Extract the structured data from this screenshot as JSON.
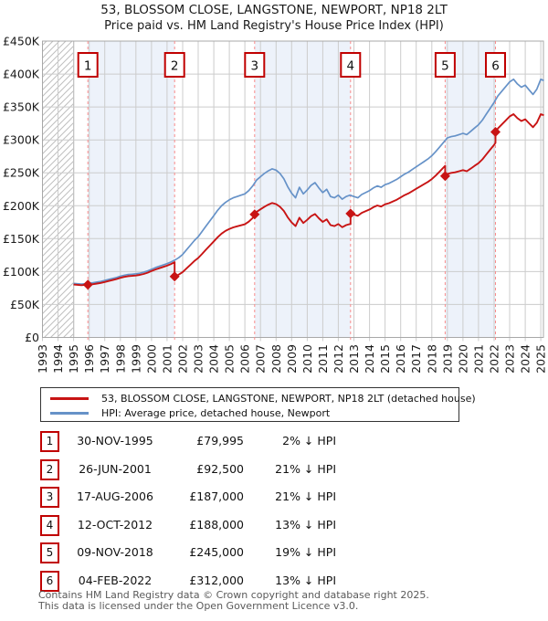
{
  "title": "53, BLOSSOM CLOSE, LANGSTONE, NEWPORT, NP18 2LT",
  "subtitle": "Price paid vs. HM Land Registry's House Price Index (HPI)",
  "legend": {
    "property": {
      "label": "53, BLOSSOM CLOSE, LANGSTONE, NEWPORT, NP18 2LT (detached house)",
      "color": "#c81414"
    },
    "hpi": {
      "label": "HPI: Average price, detached house, Newport",
      "color": "#6692c8"
    }
  },
  "footer": {
    "line1": "Contains HM Land Registry data © Crown copyright and database right 2025.",
    "line2": "This data is licensed under the Open Government Licence v3.0."
  },
  "chart_data": {
    "type": "line",
    "title": "53, BLOSSOM CLOSE, LANGSTONE, NEWPORT, NP18 2LT",
    "subtitle": "Price paid vs. HM Land Registry's House Price Index (HPI)",
    "x_axis": {
      "min": 1993,
      "max": 2025.3,
      "ticks": [
        1993,
        1994,
        1995,
        1996,
        1997,
        1998,
        1999,
        2000,
        2001,
        2002,
        2003,
        2004,
        2005,
        2006,
        2007,
        2008,
        2009,
        2010,
        2011,
        2012,
        2013,
        2014,
        2015,
        2016,
        2017,
        2018,
        2019,
        2020,
        2021,
        2022,
        2023,
        2024,
        2025
      ]
    },
    "y_axis": {
      "min": 0,
      "max": 450000,
      "tick_step": 50000,
      "tick_labels": [
        "£0",
        "£50K",
        "£100K",
        "£150K",
        "£200K",
        "£250K",
        "£300K",
        "£350K",
        "£400K",
        "£450K"
      ]
    },
    "hpi_series": {
      "name": "HPI: Average price, detached house, Newport",
      "color": "#6692c8",
      "points": [
        [
          1995.0,
          82000
        ],
        [
          1995.25,
          81500
        ],
        [
          1995.5,
          81000
        ],
        [
          1995.75,
          81500
        ],
        [
          1996.0,
          82500
        ],
        [
          1996.25,
          83000
        ],
        [
          1996.5,
          84000
        ],
        [
          1996.75,
          85000
        ],
        [
          1997.0,
          86500
        ],
        [
          1997.25,
          88000
        ],
        [
          1997.5,
          89500
        ],
        [
          1997.75,
          91000
        ],
        [
          1998.0,
          93000
        ],
        [
          1998.25,
          94500
        ],
        [
          1998.5,
          95500
        ],
        [
          1998.75,
          96000
        ],
        [
          1999.0,
          96500
        ],
        [
          1999.25,
          97500
        ],
        [
          1999.5,
          99000
        ],
        [
          1999.75,
          101000
        ],
        [
          2000.0,
          103500
        ],
        [
          2000.25,
          106000
        ],
        [
          2000.5,
          108000
        ],
        [
          2000.75,
          110000
        ],
        [
          2001.0,
          112000
        ],
        [
          2001.25,
          114500
        ],
        [
          2001.5,
          117500
        ],
        [
          2001.75,
          121000
        ],
        [
          2002.0,
          126000
        ],
        [
          2002.25,
          133000
        ],
        [
          2002.5,
          140000
        ],
        [
          2002.75,
          147000
        ],
        [
          2003.0,
          153000
        ],
        [
          2003.25,
          161000
        ],
        [
          2003.5,
          169000
        ],
        [
          2003.75,
          177000
        ],
        [
          2004.0,
          185000
        ],
        [
          2004.25,
          193000
        ],
        [
          2004.5,
          200000
        ],
        [
          2004.75,
          205000
        ],
        [
          2005.0,
          209000
        ],
        [
          2005.25,
          212000
        ],
        [
          2005.5,
          214000
        ],
        [
          2005.75,
          216000
        ],
        [
          2006.0,
          218000
        ],
        [
          2006.25,
          223000
        ],
        [
          2006.5,
          230000
        ],
        [
          2006.75,
          239000
        ],
        [
          2007.0,
          244000
        ],
        [
          2007.25,
          249000
        ],
        [
          2007.5,
          253000
        ],
        [
          2007.75,
          256000
        ],
        [
          2008.0,
          254000
        ],
        [
          2008.25,
          249000
        ],
        [
          2008.5,
          241000
        ],
        [
          2008.75,
          229000
        ],
        [
          2009.0,
          219000
        ],
        [
          2009.25,
          212000
        ],
        [
          2009.5,
          228000
        ],
        [
          2009.75,
          218000
        ],
        [
          2010.0,
          224000
        ],
        [
          2010.25,
          231000
        ],
        [
          2010.5,
          235000
        ],
        [
          2010.75,
          227000
        ],
        [
          2011.0,
          220000
        ],
        [
          2011.25,
          225000
        ],
        [
          2011.5,
          214000
        ],
        [
          2011.75,
          212000
        ],
        [
          2012.0,
          216000
        ],
        [
          2012.25,
          210000
        ],
        [
          2012.5,
          214000
        ],
        [
          2012.75,
          216000
        ],
        [
          2013.0,
          214000
        ],
        [
          2013.25,
          212000
        ],
        [
          2013.5,
          217000
        ],
        [
          2013.75,
          220000
        ],
        [
          2014.0,
          223000
        ],
        [
          2014.25,
          227000
        ],
        [
          2014.5,
          230000
        ],
        [
          2014.75,
          228000
        ],
        [
          2015.0,
          232000
        ],
        [
          2015.25,
          234000
        ],
        [
          2015.5,
          237000
        ],
        [
          2015.75,
          240000
        ],
        [
          2016.0,
          244000
        ],
        [
          2016.25,
          248000
        ],
        [
          2016.5,
          251000
        ],
        [
          2016.75,
          255000
        ],
        [
          2017.0,
          259000
        ],
        [
          2017.25,
          263000
        ],
        [
          2017.5,
          267000
        ],
        [
          2017.75,
          271000
        ],
        [
          2018.0,
          276000
        ],
        [
          2018.25,
          282000
        ],
        [
          2018.5,
          289000
        ],
        [
          2018.75,
          296000
        ],
        [
          2019.0,
          303000
        ],
        [
          2019.25,
          305000
        ],
        [
          2019.5,
          306000
        ],
        [
          2019.75,
          308000
        ],
        [
          2020.0,
          310000
        ],
        [
          2020.25,
          308000
        ],
        [
          2020.5,
          313000
        ],
        [
          2020.75,
          318000
        ],
        [
          2021.0,
          323000
        ],
        [
          2021.25,
          330000
        ],
        [
          2021.5,
          339000
        ],
        [
          2021.75,
          348000
        ],
        [
          2022.0,
          357000
        ],
        [
          2022.25,
          367000
        ],
        [
          2022.5,
          374000
        ],
        [
          2022.75,
          381000
        ],
        [
          2023.0,
          388000
        ],
        [
          2023.25,
          392000
        ],
        [
          2023.5,
          385000
        ],
        [
          2023.75,
          380000
        ],
        [
          2024.0,
          383000
        ],
        [
          2024.25,
          376000
        ],
        [
          2024.5,
          369000
        ],
        [
          2024.75,
          377000
        ],
        [
          2025.0,
          392000
        ],
        [
          2025.2,
          390000
        ]
      ]
    },
    "property_series": {
      "name": "53, BLOSSOM CLOSE, LANGSTONE, NEWPORT, NP18 2LT (detached house)",
      "color": "#c81414",
      "note": "price paid; between sales the line tracks the HPI scaled to the last sale price",
      "pre_sale_factor": 0.98
    },
    "sales": [
      {
        "num": 1,
        "date": "30-NOV-1995",
        "year": 1995.915,
        "price": 79995,
        "price_label": "£79,995",
        "hpi_diff": "2% ↓ HPI"
      },
      {
        "num": 2,
        "date": "26-JUN-2001",
        "year": 2001.485,
        "price": 92500,
        "price_label": "£92,500",
        "hpi_diff": "21% ↓ HPI"
      },
      {
        "num": 3,
        "date": "17-AUG-2006",
        "year": 2006.627,
        "price": 187000,
        "price_label": "£187,000",
        "hpi_diff": "21% ↓ HPI"
      },
      {
        "num": 4,
        "date": "12-OCT-2012",
        "year": 2012.783,
        "price": 188000,
        "price_label": "£188,000",
        "hpi_diff": "13% ↓ HPI"
      },
      {
        "num": 5,
        "date": "09-NOV-2018",
        "year": 2018.858,
        "price": 245000,
        "price_label": "£245,000",
        "hpi_diff": "19% ↓ HPI"
      },
      {
        "num": 6,
        "date": "04-FEB-2022",
        "year": 2022.093,
        "price": 312000,
        "price_label": "£312,000",
        "hpi_diff": "13% ↓ HPI"
      }
    ],
    "shaded_periods": [
      [
        1,
        2
      ],
      [
        3,
        4
      ],
      [
        5,
        6
      ]
    ],
    "hatch_region_end": 1995,
    "styles": {
      "band": "#edf2fa",
      "grid": "#cccccc",
      "frame": "#a8a8a8",
      "dashed_line": "#f98b8b",
      "hatch": "#bfbfbf",
      "hatch_edge": "#555555",
      "marker_box_border": "#c00000",
      "axis_text": "#1a1a1a"
    }
  }
}
